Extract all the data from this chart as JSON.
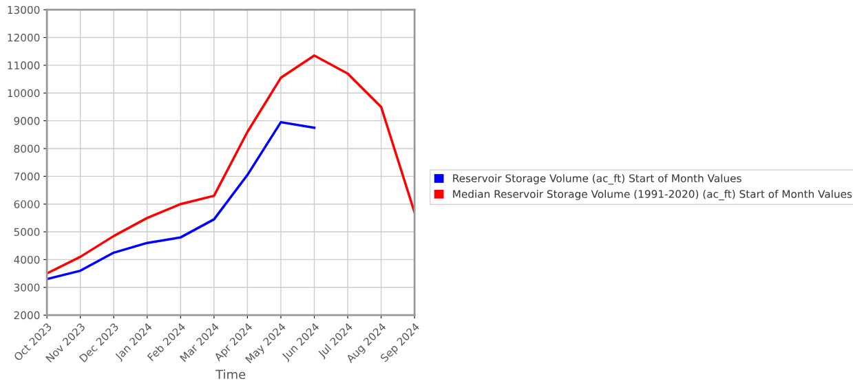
{
  "chart_data": {
    "type": "line",
    "xlabel": "Time",
    "categories": [
      "Oct 2023",
      "Nov 2023",
      "Dec 2023",
      "Jan 2024",
      "Feb 2024",
      "Mar 2024",
      "Apr 2024",
      "May 2024",
      "Jun 2024",
      "Jul 2024",
      "Aug 2024",
      "Sep 2024"
    ],
    "series": [
      {
        "name": "Reservoir Storage Volume (ac_ft) Start of Month Values",
        "color": "#0000ff",
        "values": [
          3300,
          3600,
          4250,
          4600,
          4800,
          5450,
          7050,
          8950,
          8750,
          null,
          null,
          null
        ]
      },
      {
        "name": "Median Reservoir Storage Volume (1991-2020) (ac_ft) Start of Month Values",
        "color": "#ff0000",
        "values": [
          3500,
          4100,
          4850,
          5500,
          6000,
          6300,
          8600,
          10550,
          11350,
          10700,
          9500,
          5700
        ]
      }
    ],
    "ylim": [
      2000,
      13000
    ],
    "yticks": [
      2000,
      3000,
      4000,
      5000,
      6000,
      7000,
      8000,
      9000,
      10000,
      11000,
      12000,
      13000
    ],
    "grid": true,
    "legend": "right",
    "marker": "none",
    "line_style": "solid"
  }
}
